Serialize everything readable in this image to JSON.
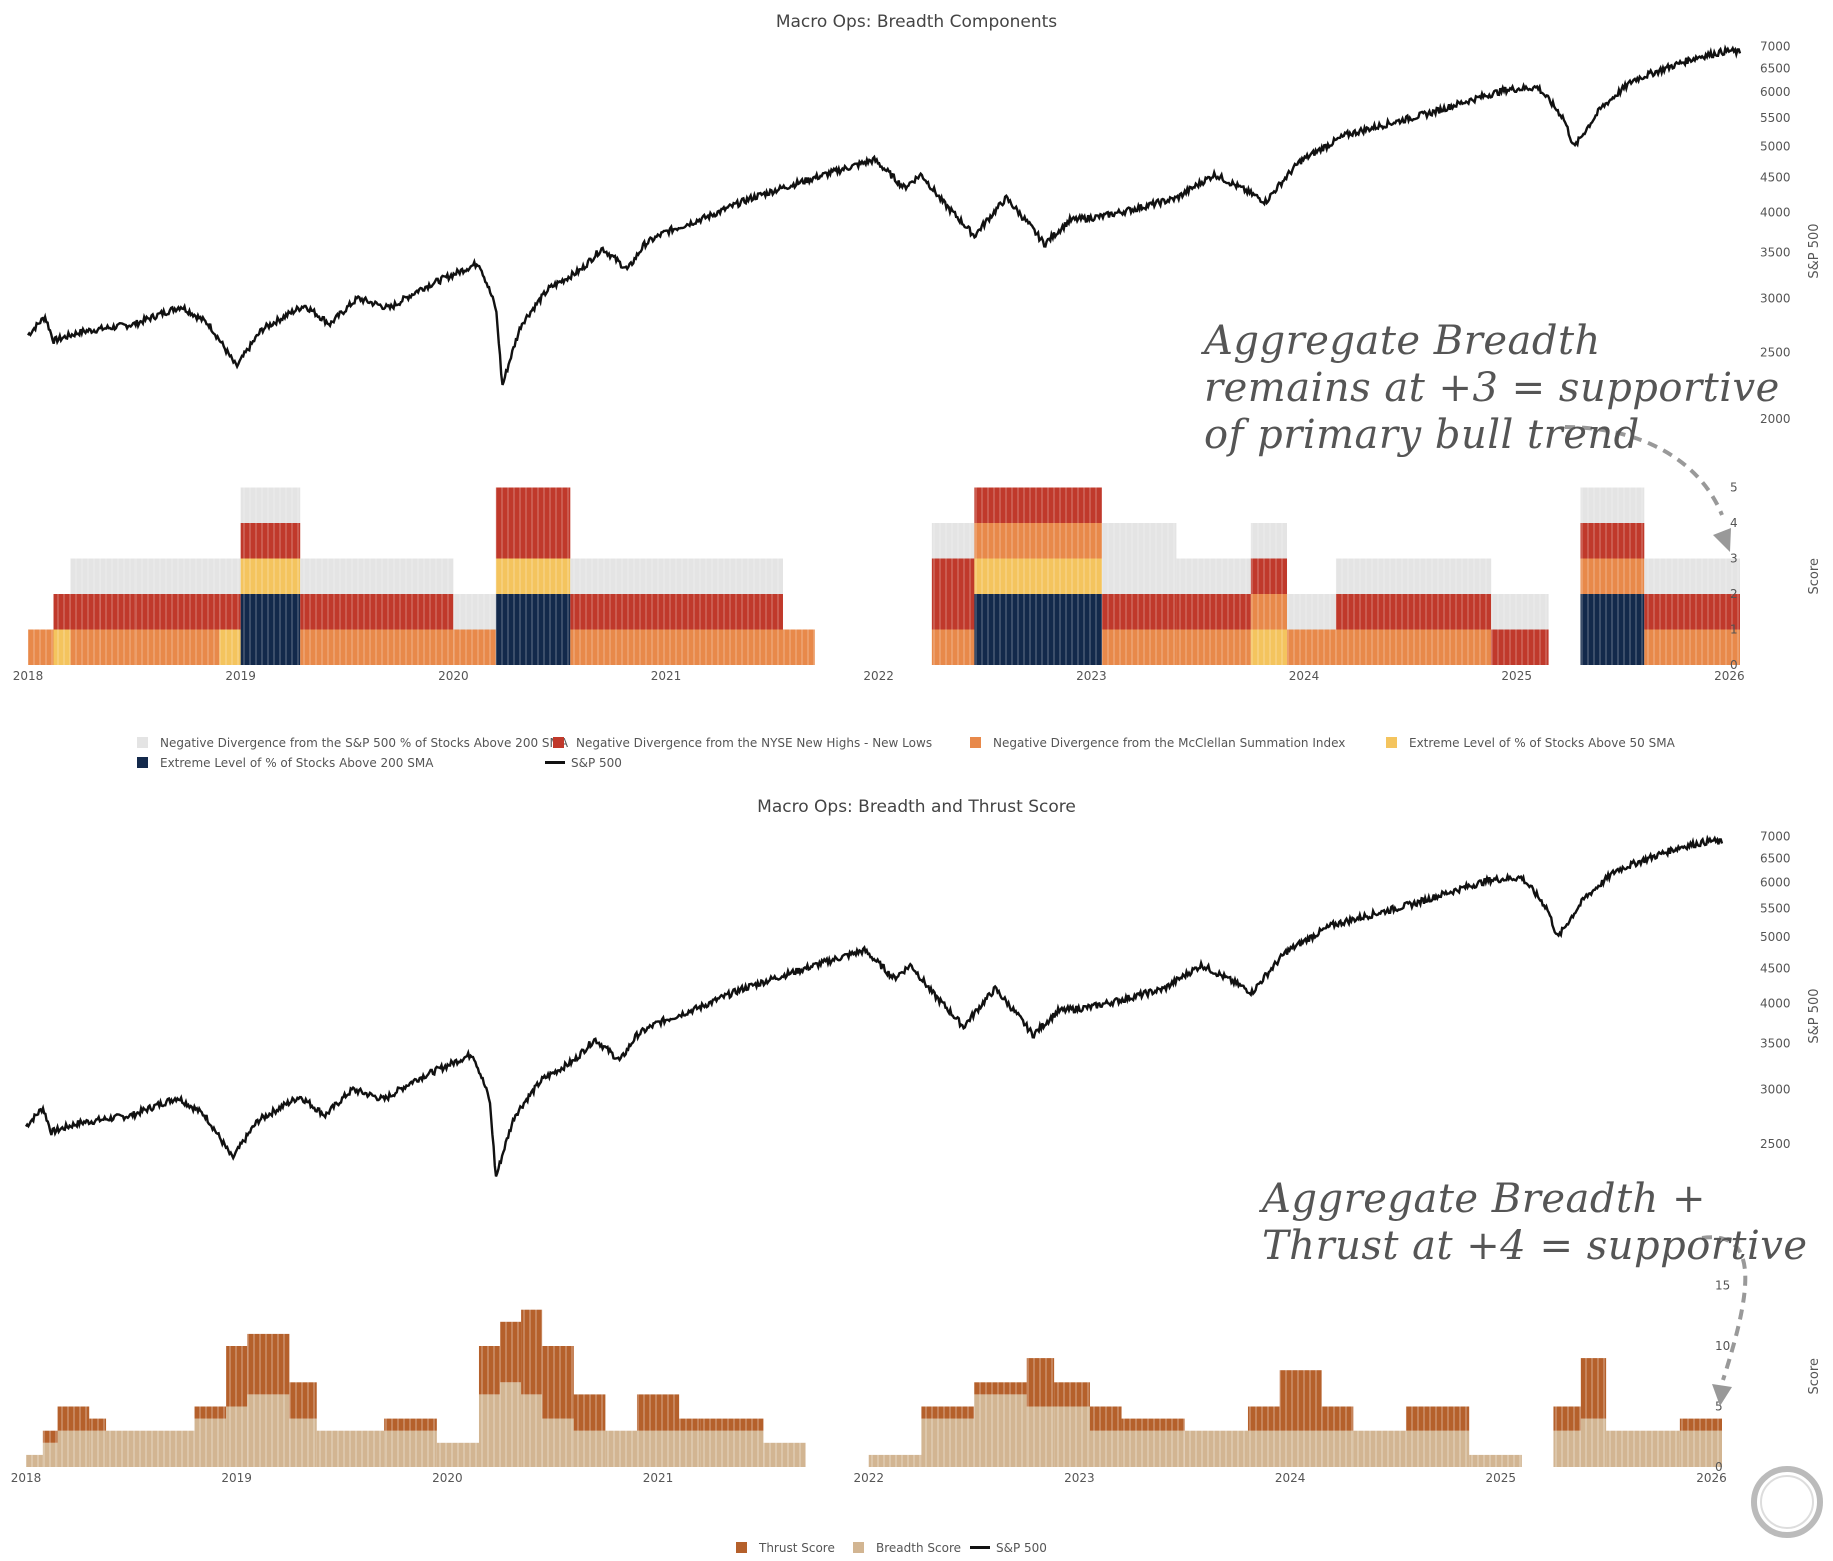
{
  "chart_data": [
    {
      "type": "bar",
      "title": "Macro Ops: Breadth Components",
      "stacked": true,
      "x_tick_labels": [
        "2018",
        "2019",
        "2020",
        "2021",
        "2022",
        "2023",
        "2024",
        "2025",
        "2026"
      ],
      "ylabel": "Score",
      "ylim": [
        0,
        5
      ],
      "y_ticks": [
        "0",
        "1",
        "2",
        "3",
        "4",
        "5"
      ],
      "overlay": {
        "name": "S&P 500",
        "axis_label": "S&P 500",
        "scale": "log",
        "ticks": [
          "2000",
          "2500",
          "3000",
          "3500",
          "4000",
          "4500",
          "5000",
          "5500",
          "6000",
          "6500",
          "7000"
        ],
        "ylim": [
          1850,
          7150
        ]
      },
      "series": [
        {
          "name": "Extreme Level of % of Stocks Above 200 SMA",
          "color": "#13294b"
        },
        {
          "name": "Negative Divergence from the McClellan Summation Index",
          "color": "#e8894a"
        },
        {
          "name": "Negative Divergence from the NYSE New Highs - New Lows",
          "color": "#c0392b"
        },
        {
          "name": "Extreme Level of % of Stocks Above 50 SMA",
          "color": "#f4c45e"
        },
        {
          "name": "Negative Divergence from the S&P 500 % of Stocks Above 200 SMA",
          "color": "#e4e4e4"
        }
      ],
      "segments": [
        {
          "from": 2018.0,
          "to": 2018.12,
          "stack": [
            "mcc"
          ]
        },
        {
          "from": 2018.12,
          "to": 2018.2,
          "stack": [
            "a50",
            "nhnl"
          ]
        },
        {
          "from": 2018.2,
          "to": 2018.34,
          "stack": [
            "mcc",
            "nhnl",
            "s200"
          ]
        },
        {
          "from": 2018.34,
          "to": 2018.5,
          "stack": [
            "mcc",
            "nhnl",
            "s200"
          ]
        },
        {
          "from": 2018.5,
          "to": 2018.9,
          "stack": [
            "mcc",
            "nhnl",
            "s200"
          ]
        },
        {
          "from": 2018.9,
          "to": 2019.0,
          "stack": [
            "a50",
            "nhnl",
            "s200"
          ]
        },
        {
          "from": 2019.0,
          "to": 2019.28,
          "stack": [
            "e200",
            "e200",
            "a50",
            "nhnl",
            "s200"
          ]
        },
        {
          "from": 2019.28,
          "to": 2020.0,
          "stack": [
            "mcc",
            "nhnl",
            "s200"
          ]
        },
        {
          "from": 2020.0,
          "to": 2020.2,
          "stack": [
            "mcc",
            "s200"
          ]
        },
        {
          "from": 2020.2,
          "to": 2020.55,
          "stack": [
            "e200",
            "e200",
            "a50",
            "nhnl",
            "nhnl"
          ]
        },
        {
          "from": 2020.55,
          "to": 2021.55,
          "stack": [
            "mcc",
            "nhnl",
            "s200"
          ]
        },
        {
          "from": 2021.55,
          "to": 2021.7,
          "stack": [
            "mcc"
          ]
        },
        {
          "from": 2022.25,
          "to": 2022.45,
          "stack": [
            "mcc",
            "nhnl",
            "nhnl",
            "s200"
          ]
        },
        {
          "from": 2022.45,
          "to": 2023.05,
          "stack": [
            "e200",
            "e200",
            "a50",
            "mcc",
            "nhnl"
          ]
        },
        {
          "from": 2023.05,
          "to": 2023.4,
          "stack": [
            "mcc",
            "nhnl",
            "s200",
            "s200"
          ]
        },
        {
          "from": 2023.4,
          "to": 2023.75,
          "stack": [
            "mcc",
            "nhnl",
            "s200"
          ]
        },
        {
          "from": 2023.75,
          "to": 2023.92,
          "stack": [
            "a50",
            "mcc",
            "nhnl",
            "s200"
          ]
        },
        {
          "from": 2023.92,
          "to": 2024.15,
          "stack": [
            "mcc",
            "s200"
          ]
        },
        {
          "from": 2024.15,
          "to": 2024.88,
          "stack": [
            "mcc",
            "nhnl",
            "s200"
          ]
        },
        {
          "from": 2024.88,
          "to": 2025.15,
          "stack": [
            "nhnl",
            "s200"
          ]
        },
        {
          "from": 2025.3,
          "to": 2025.6,
          "stack": [
            "e200",
            "e200",
            "mcc",
            "nhnl",
            "s200"
          ]
        },
        {
          "from": 2025.6,
          "to": 2026.05,
          "stack": [
            "mcc",
            "nhnl",
            "s200"
          ]
        }
      ],
      "legend": [
        "Negative Divergence from the S&P 500 % of Stocks Above 200 SMA",
        "Negative Divergence from the NYSE New Highs - New Lows",
        "Negative Divergence from the McClellan Summation Index",
        "Extreme Level of % of Stocks Above 50 SMA",
        "Extreme Level of % of Stocks Above 200 SMA",
        "S&P 500"
      ],
      "annotation": [
        "Aggregate Breadth",
        "remains at +3 = supportive",
        "of primary bull trend"
      ]
    },
    {
      "type": "bar",
      "title": "Macro Ops: Breadth and Thrust Score",
      "stacked": true,
      "x_tick_labels": [
        "2018",
        "2019",
        "2020",
        "2021",
        "2022",
        "2023",
        "2024",
        "2025",
        "2026"
      ],
      "ylabel": "Score",
      "ylim": [
        0,
        16
      ],
      "y_ticks": [
        "0",
        "5",
        "10",
        "15"
      ],
      "overlay": {
        "name": "S&P 500",
        "axis_label": "S&P 500",
        "scale": "log",
        "ticks": [
          "2500",
          "3000",
          "3500",
          "4000",
          "4500",
          "5000",
          "5500",
          "6000",
          "6500",
          "7000"
        ],
        "ylim": [
          2200,
          7150
        ]
      },
      "series": [
        {
          "name": "Breadth Score",
          "color": "#d2b592"
        },
        {
          "name": "Thrust Score",
          "color": "#b5602b"
        }
      ],
      "segments": [
        {
          "from": 2018.0,
          "to": 2018.08,
          "breadth": 1,
          "thrust": 0
        },
        {
          "from": 2018.08,
          "to": 2018.15,
          "breadth": 2,
          "thrust": 1
        },
        {
          "from": 2018.15,
          "to": 2018.3,
          "breadth": 3,
          "thrust": 2
        },
        {
          "from": 2018.3,
          "to": 2018.38,
          "breadth": 3,
          "thrust": 1
        },
        {
          "from": 2018.38,
          "to": 2018.8,
          "breadth": 3,
          "thrust": 0
        },
        {
          "from": 2018.8,
          "to": 2018.95,
          "breadth": 4,
          "thrust": 1
        },
        {
          "from": 2018.95,
          "to": 2019.05,
          "breadth": 5,
          "thrust": 5
        },
        {
          "from": 2019.05,
          "to": 2019.25,
          "breadth": 6,
          "thrust": 5
        },
        {
          "from": 2019.25,
          "to": 2019.38,
          "breadth": 4,
          "thrust": 3
        },
        {
          "from": 2019.38,
          "to": 2019.7,
          "breadth": 3,
          "thrust": 0
        },
        {
          "from": 2019.7,
          "to": 2019.95,
          "breadth": 3,
          "thrust": 1
        },
        {
          "from": 2019.95,
          "to": 2020.15,
          "breadth": 2,
          "thrust": 0
        },
        {
          "from": 2020.15,
          "to": 2020.25,
          "breadth": 6,
          "thrust": 4
        },
        {
          "from": 2020.25,
          "to": 2020.35,
          "breadth": 7,
          "thrust": 5
        },
        {
          "from": 2020.35,
          "to": 2020.45,
          "breadth": 6,
          "thrust": 7
        },
        {
          "from": 2020.45,
          "to": 2020.6,
          "breadth": 4,
          "thrust": 6
        },
        {
          "from": 2020.6,
          "to": 2020.75,
          "breadth": 3,
          "thrust": 3
        },
        {
          "from": 2020.75,
          "to": 2020.9,
          "breadth": 3,
          "thrust": 0
        },
        {
          "from": 2020.9,
          "to": 2021.1,
          "breadth": 3,
          "thrust": 3
        },
        {
          "from": 2021.1,
          "to": 2021.2,
          "breadth": 3,
          "thrust": 1
        },
        {
          "from": 2021.2,
          "to": 2021.5,
          "breadth": 3,
          "thrust": 1
        },
        {
          "from": 2021.5,
          "to": 2021.7,
          "breadth": 2,
          "thrust": 0
        },
        {
          "from": 2022.0,
          "to": 2022.25,
          "breadth": 1,
          "thrust": 0
        },
        {
          "from": 2022.25,
          "to": 2022.5,
          "breadth": 4,
          "thrust": 1
        },
        {
          "from": 2022.5,
          "to": 2022.75,
          "breadth": 6,
          "thrust": 1
        },
        {
          "from": 2022.75,
          "to": 2022.88,
          "breadth": 5,
          "thrust": 4
        },
        {
          "from": 2022.88,
          "to": 2023.05,
          "breadth": 5,
          "thrust": 2
        },
        {
          "from": 2023.05,
          "to": 2023.2,
          "breadth": 3,
          "thrust": 2
        },
        {
          "from": 2023.2,
          "to": 2023.5,
          "breadth": 3,
          "thrust": 1
        },
        {
          "from": 2023.5,
          "to": 2023.8,
          "breadth": 3,
          "thrust": 0
        },
        {
          "from": 2023.8,
          "to": 2023.95,
          "breadth": 3,
          "thrust": 2
        },
        {
          "from": 2023.95,
          "to": 2024.15,
          "breadth": 3,
          "thrust": 5
        },
        {
          "from": 2024.15,
          "to": 2024.3,
          "breadth": 3,
          "thrust": 2
        },
        {
          "from": 2024.3,
          "to": 2024.55,
          "breadth": 3,
          "thrust": 0
        },
        {
          "from": 2024.55,
          "to": 2024.85,
          "breadth": 3,
          "thrust": 2
        },
        {
          "from": 2024.85,
          "to": 2025.1,
          "breadth": 1,
          "thrust": 0
        },
        {
          "from": 2025.25,
          "to": 2025.38,
          "breadth": 3,
          "thrust": 2
        },
        {
          "from": 2025.38,
          "to": 2025.5,
          "breadth": 4,
          "thrust": 5
        },
        {
          "from": 2025.5,
          "to": 2025.85,
          "breadth": 3,
          "thrust": 0
        },
        {
          "from": 2025.85,
          "to": 2026.05,
          "breadth": 3,
          "thrust": 1
        }
      ],
      "legend": [
        "Thrust Score",
        "Breadth Score",
        "S&P 500"
      ],
      "annotation": [
        "Aggregate Breadth +",
        "Thrust at +4 = supportive"
      ]
    }
  ],
  "sp500_anchors": [
    [
      2018.0,
      2650
    ],
    [
      2018.08,
      2820
    ],
    [
      2018.12,
      2600
    ],
    [
      2018.25,
      2680
    ],
    [
      2018.5,
      2750
    ],
    [
      2018.72,
      2920
    ],
    [
      2018.85,
      2750
    ],
    [
      2018.98,
      2380
    ],
    [
      2019.1,
      2700
    ],
    [
      2019.3,
      2930
    ],
    [
      2019.42,
      2750
    ],
    [
      2019.55,
      3000
    ],
    [
      2019.7,
      2900
    ],
    [
      2019.85,
      3100
    ],
    [
      2020.0,
      3250
    ],
    [
      2020.12,
      3380
    ],
    [
      2020.2,
      2900
    ],
    [
      2020.23,
      2230
    ],
    [
      2020.32,
      2750
    ],
    [
      2020.45,
      3100
    ],
    [
      2020.6,
      3300
    ],
    [
      2020.7,
      3550
    ],
    [
      2020.82,
      3300
    ],
    [
      2020.9,
      3600
    ],
    [
      2021.0,
      3750
    ],
    [
      2021.2,
      3950
    ],
    [
      2021.4,
      4200
    ],
    [
      2021.6,
      4400
    ],
    [
      2021.8,
      4600
    ],
    [
      2021.98,
      4780
    ],
    [
      2022.12,
      4350
    ],
    [
      2022.2,
      4550
    ],
    [
      2022.3,
      4150
    ],
    [
      2022.45,
      3700
    ],
    [
      2022.6,
      4200
    ],
    [
      2022.78,
      3600
    ],
    [
      2022.9,
      3900
    ],
    [
      2023.05,
      3950
    ],
    [
      2023.2,
      4050
    ],
    [
      2023.4,
      4200
    ],
    [
      2023.58,
      4550
    ],
    [
      2023.82,
      4150
    ],
    [
      2023.98,
      4750
    ],
    [
      2024.2,
      5200
    ],
    [
      2024.45,
      5450
    ],
    [
      2024.6,
      5600
    ],
    [
      2024.75,
      5800
    ],
    [
      2024.95,
      6050
    ],
    [
      2025.1,
      6100
    ],
    [
      2025.22,
      5500
    ],
    [
      2025.27,
      4980
    ],
    [
      2025.4,
      5700
    ],
    [
      2025.55,
      6250
    ],
    [
      2025.7,
      6500
    ],
    [
      2025.85,
      6750
    ],
    [
      2026.0,
      6900
    ],
    [
      2026.05,
      6850
    ]
  ]
}
